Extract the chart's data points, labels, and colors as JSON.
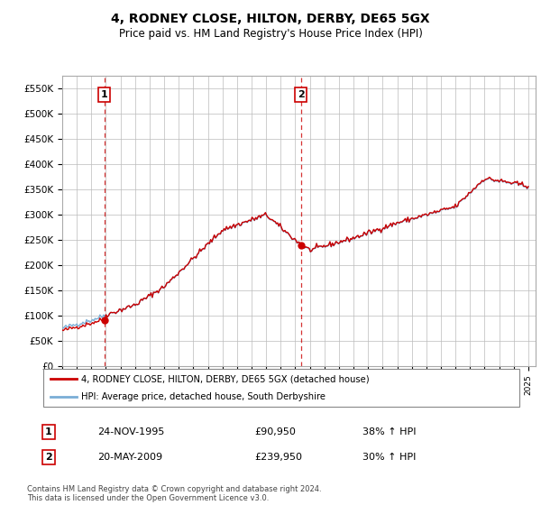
{
  "title": "4, RODNEY CLOSE, HILTON, DERBY, DE65 5GX",
  "subtitle": "Price paid vs. HM Land Registry's House Price Index (HPI)",
  "ylim": [
    0,
    575000
  ],
  "yticks": [
    0,
    50000,
    100000,
    150000,
    200000,
    250000,
    300000,
    350000,
    400000,
    450000,
    500000,
    550000
  ],
  "ytick_labels": [
    "£0",
    "£50K",
    "£100K",
    "£150K",
    "£200K",
    "£250K",
    "£300K",
    "£350K",
    "£400K",
    "£450K",
    "£500K",
    "£550K"
  ],
  "xlim_start": 1993.0,
  "xlim_end": 2025.5,
  "sale1_date": 1995.9,
  "sale1_price": 90950,
  "sale1_label": "1",
  "sale2_date": 2009.38,
  "sale2_price": 239950,
  "sale2_label": "2",
  "line_color_property": "#cc0000",
  "line_color_hpi": "#7aaed6",
  "grid_color": "#cccccc",
  "legend_label_property": "4, RODNEY CLOSE, HILTON, DERBY, DE65 5GX (detached house)",
  "legend_label_hpi": "HPI: Average price, detached house, South Derbyshire",
  "annotation1_box_label": "1",
  "annotation1_date": "24-NOV-1995",
  "annotation1_price": "£90,950",
  "annotation1_hpi": "38% ↑ HPI",
  "annotation2_box_label": "2",
  "annotation2_date": "20-MAY-2009",
  "annotation2_price": "£239,950",
  "annotation2_hpi": "30% ↑ HPI",
  "footer": "Contains HM Land Registry data © Crown copyright and database right 2024.\nThis data is licensed under the Open Government Licence v3.0."
}
